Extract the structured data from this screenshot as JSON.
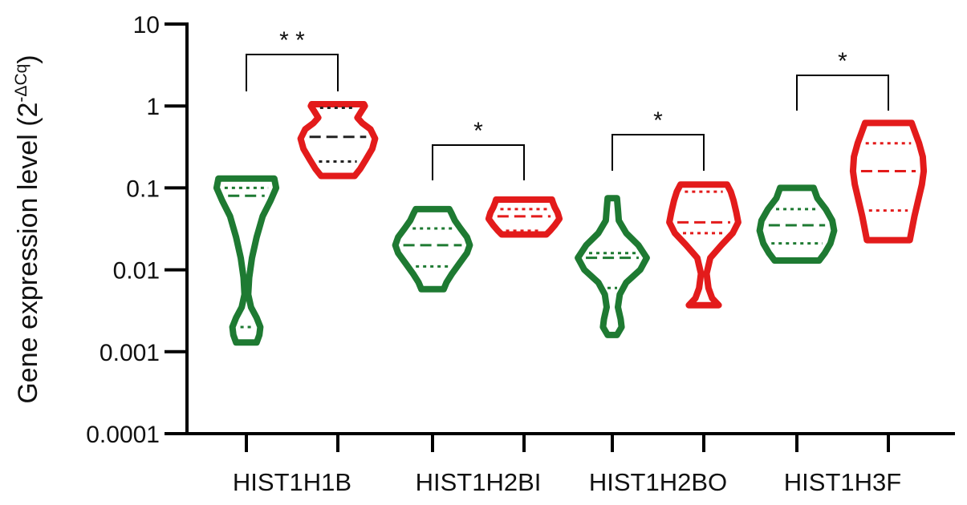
{
  "chart_data": {
    "type": "violin",
    "ylabel": "Gene expression level (2",
    "ylabel_superscript": "-ΔCq",
    "ylabel_close": ")",
    "yscale": "log",
    "ylim": [
      0.0001,
      10
    ],
    "yticks": [
      {
        "value": 10,
        "label": "10"
      },
      {
        "value": 1,
        "label": "1"
      },
      {
        "value": 0.1,
        "label": "0.1"
      },
      {
        "value": 0.01,
        "label": "0.01"
      },
      {
        "value": 0.001,
        "label": "0.001"
      },
      {
        "value": 0.0001,
        "label": "0.0001"
      }
    ],
    "categories": [
      "HIST1H1B",
      "HIST1H2BI",
      "HIST1H2BO",
      "HIST1H3F"
    ],
    "colors": {
      "group1": "#1e7a32",
      "group2": "#e31b1b"
    },
    "violins": [
      {
        "category": "HIST1H1B",
        "group": "group1",
        "color": "#1e7a32",
        "min": 0.0013,
        "max": 0.13,
        "median": 0.08,
        "q1": 0.002,
        "q3": 0.1,
        "profile": [
          [
            0.0013,
            0.22
          ],
          [
            0.0016,
            0.28
          ],
          [
            0.002,
            0.3
          ],
          [
            0.0026,
            0.22
          ],
          [
            0.0035,
            0.1
          ],
          [
            0.005,
            0.04
          ],
          [
            0.008,
            0.06
          ],
          [
            0.014,
            0.12
          ],
          [
            0.025,
            0.22
          ],
          [
            0.045,
            0.35
          ],
          [
            0.07,
            0.52
          ],
          [
            0.1,
            0.64
          ],
          [
            0.13,
            0.6
          ]
        ]
      },
      {
        "category": "HIST1H1B",
        "group": "group2",
        "color": "#e31b1b",
        "min": 0.14,
        "max": 1.05,
        "median": 0.42,
        "q1": 0.21,
        "q3": 0.95,
        "profile": [
          [
            0.14,
            0.36
          ],
          [
            0.17,
            0.48
          ],
          [
            0.22,
            0.6
          ],
          [
            0.3,
            0.74
          ],
          [
            0.4,
            0.8
          ],
          [
            0.52,
            0.7
          ],
          [
            0.62,
            0.52
          ],
          [
            0.72,
            0.42
          ],
          [
            0.85,
            0.5
          ],
          [
            1.0,
            0.58
          ],
          [
            1.05,
            0.56
          ]
        ]
      },
      {
        "category": "HIST1H2BI",
        "group": "group1",
        "color": "#1e7a32",
        "min": 0.0058,
        "max": 0.055,
        "median": 0.02,
        "q1": 0.011,
        "q3": 0.032,
        "profile": [
          [
            0.0058,
            0.24
          ],
          [
            0.007,
            0.3
          ],
          [
            0.009,
            0.42
          ],
          [
            0.012,
            0.58
          ],
          [
            0.016,
            0.74
          ],
          [
            0.02,
            0.8
          ],
          [
            0.025,
            0.74
          ],
          [
            0.032,
            0.6
          ],
          [
            0.04,
            0.48
          ],
          [
            0.05,
            0.4
          ],
          [
            0.055,
            0.36
          ]
        ]
      },
      {
        "category": "HIST1H2BI",
        "group": "group2",
        "color": "#e31b1b",
        "min": 0.027,
        "max": 0.072,
        "median": 0.045,
        "q1": 0.03,
        "q3": 0.055,
        "profile": [
          [
            0.027,
            0.48
          ],
          [
            0.03,
            0.56
          ],
          [
            0.035,
            0.66
          ],
          [
            0.042,
            0.76
          ],
          [
            0.05,
            0.72
          ],
          [
            0.058,
            0.66
          ],
          [
            0.066,
            0.62
          ],
          [
            0.072,
            0.6
          ]
        ]
      },
      {
        "category": "HIST1H2BO",
        "group": "group1",
        "color": "#1e7a32",
        "min": 0.0016,
        "max": 0.075,
        "median": 0.014,
        "q1": 0.006,
        "q3": 0.016,
        "profile": [
          [
            0.0016,
            0.1
          ],
          [
            0.002,
            0.2
          ],
          [
            0.0025,
            0.18
          ],
          [
            0.0035,
            0.12
          ],
          [
            0.005,
            0.16
          ],
          [
            0.007,
            0.3
          ],
          [
            0.01,
            0.6
          ],
          [
            0.014,
            0.74
          ],
          [
            0.02,
            0.56
          ],
          [
            0.028,
            0.3
          ],
          [
            0.04,
            0.14
          ],
          [
            0.055,
            0.12
          ],
          [
            0.075,
            0.1
          ]
        ]
      },
      {
        "category": "HIST1H2BO",
        "group": "group2",
        "color": "#e31b1b",
        "min": 0.0037,
        "max": 0.11,
        "median": 0.038,
        "q1": 0.028,
        "q3": 0.09,
        "profile": [
          [
            0.0037,
            0.32
          ],
          [
            0.0045,
            0.18
          ],
          [
            0.006,
            0.1
          ],
          [
            0.009,
            0.06
          ],
          [
            0.014,
            0.14
          ],
          [
            0.02,
            0.38
          ],
          [
            0.028,
            0.62
          ],
          [
            0.038,
            0.74
          ],
          [
            0.05,
            0.7
          ],
          [
            0.07,
            0.64
          ],
          [
            0.09,
            0.58
          ],
          [
            0.11,
            0.5
          ]
        ]
      },
      {
        "category": "HIST1H3F",
        "group": "group1",
        "color": "#1e7a32",
        "min": 0.013,
        "max": 0.1,
        "median": 0.035,
        "q1": 0.021,
        "q3": 0.055,
        "profile": [
          [
            0.013,
            0.48
          ],
          [
            0.016,
            0.6
          ],
          [
            0.021,
            0.72
          ],
          [
            0.03,
            0.8
          ],
          [
            0.04,
            0.76
          ],
          [
            0.055,
            0.62
          ],
          [
            0.075,
            0.44
          ],
          [
            0.1,
            0.36
          ]
        ]
      },
      {
        "category": "HIST1H3F",
        "group": "group2",
        "color": "#e31b1b",
        "min": 0.023,
        "max": 0.62,
        "median": 0.16,
        "q1": 0.053,
        "q3": 0.35,
        "profile": [
          [
            0.023,
            0.46
          ],
          [
            0.03,
            0.5
          ],
          [
            0.045,
            0.56
          ],
          [
            0.07,
            0.64
          ],
          [
            0.11,
            0.72
          ],
          [
            0.16,
            0.76
          ],
          [
            0.24,
            0.74
          ],
          [
            0.35,
            0.66
          ],
          [
            0.5,
            0.56
          ],
          [
            0.62,
            0.5
          ]
        ]
      }
    ],
    "significance": [
      {
        "category": "HIST1H1B",
        "label": "* *",
        "value": 4.2
      },
      {
        "category": "HIST1H2BI",
        "label": "*",
        "value": 0.5
      },
      {
        "category": "HIST1H2BO",
        "label": "*",
        "value": 0.5
      },
      {
        "category": "HIST1H3F",
        "label": "*",
        "value": 2.5
      }
    ]
  }
}
